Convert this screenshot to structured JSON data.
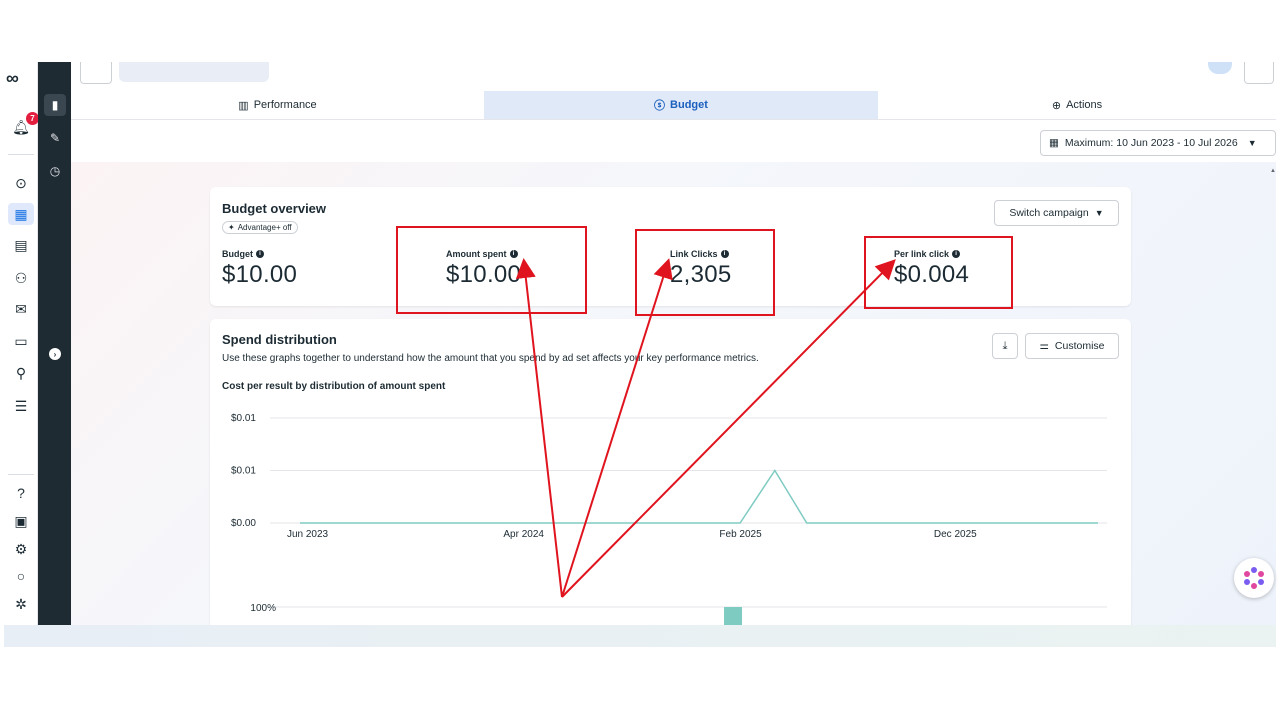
{
  "brand": {
    "logo_text": "∞"
  },
  "notifications": {
    "badge_count": "7"
  },
  "tabs": [
    {
      "label": "Performance",
      "icon": "bar-chart-icon",
      "active": false
    },
    {
      "label": "Budget",
      "icon": "coin-icon",
      "active": true
    },
    {
      "label": "Actions",
      "icon": "arrow-up-circle-icon",
      "active": false
    }
  ],
  "date_range": {
    "label": "Maximum: 10 Jun 2023 - 10 Jul 2026"
  },
  "budget_overview": {
    "title": "Budget overview",
    "advantage_label": "Advantage+ off",
    "switch_button": "Switch campaign",
    "metrics": [
      {
        "label": "Budget",
        "value": "$10.00"
      },
      {
        "label": "Amount spent",
        "value": "$10.00"
      },
      {
        "label": "Link Clicks",
        "value": "2,305"
      },
      {
        "label": "Per link click",
        "value": "$0.004"
      }
    ]
  },
  "spend_distribution": {
    "title": "Spend distribution",
    "description": "Use these graphs together to understand how the amount that you spend by ad set affects your key performance metrics.",
    "customise_button": "Customise"
  },
  "chart_data": [
    {
      "type": "line",
      "title": "Cost per result by distribution of amount spent",
      "y_ticks": [
        "$0.01",
        "$0.01",
        "$0.00"
      ],
      "x_ticks": [
        "Jun 2023",
        "Apr 2024",
        "Feb 2025",
        "Dec 2025"
      ],
      "ylim": [
        0,
        0.01
      ],
      "series": [
        {
          "color": "#7ecbc2",
          "x": [
            "2023-06-10",
            "2025-02-20",
            "2025-04-10",
            "2025-05-25",
            "2026-07-10"
          ],
          "y": [
            0,
            0,
            0.005,
            0,
            0
          ]
        }
      ],
      "grid": true
    },
    {
      "type": "bar",
      "y_ticks": [
        "100%"
      ],
      "series": [
        {
          "color": "#7ecbc2",
          "x": [
            "2025-02-10"
          ],
          "values": [
            100
          ]
        }
      ]
    }
  ],
  "colors": {
    "accent": "#1b74e4",
    "sidebar_dark": "#1f2b33",
    "annotation_red": "#e0141e",
    "series": "#7ecbc2"
  }
}
